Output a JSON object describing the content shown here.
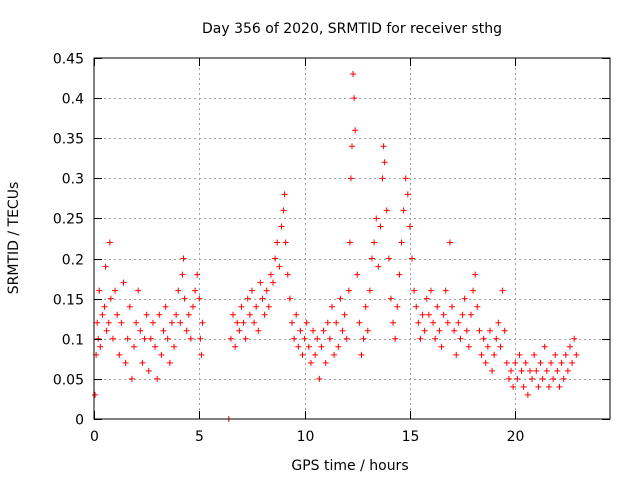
{
  "chart_data": {
    "type": "scatter",
    "title": "Day 356 of 2020, SRMTID for receiver sthg",
    "xlabel": "GPS time / hours",
    "ylabel": "SRMTID / TECUs",
    "xlim": [
      0,
      24.5
    ],
    "ylim": [
      0,
      0.45
    ],
    "xticks": [
      0,
      5,
      10,
      15,
      20
    ],
    "xtick_labels": [
      "0",
      "5",
      "10",
      "15",
      "20"
    ],
    "yticks": [
      0,
      0.05,
      0.1,
      0.15,
      0.2,
      0.25,
      0.3,
      0.35,
      0.4,
      0.45
    ],
    "ytick_labels": [
      "0",
      "0.05",
      "0.1",
      "0.15",
      "0.2",
      "0.25",
      "0.3",
      "0.35",
      "0.4",
      "0.45"
    ],
    "grid": true,
    "marker": "+",
    "color": "#ff0000",
    "series": [
      {
        "name": "SRMTID",
        "points": [
          [
            0.05,
            0.03
          ],
          [
            0.1,
            0.08
          ],
          [
            0.15,
            0.12
          ],
          [
            0.2,
            0.1
          ],
          [
            0.25,
            0.16
          ],
          [
            0.3,
            0.09
          ],
          [
            0.4,
            0.13
          ],
          [
            0.5,
            0.14
          ],
          [
            0.55,
            0.19
          ],
          [
            0.6,
            0.11
          ],
          [
            0.7,
            0.12
          ],
          [
            0.75,
            0.22
          ],
          [
            0.8,
            0.15
          ],
          [
            0.9,
            0.1
          ],
          [
            1.0,
            0.16
          ],
          [
            1.1,
            0.13
          ],
          [
            1.2,
            0.08
          ],
          [
            1.3,
            0.12
          ],
          [
            1.4,
            0.17
          ],
          [
            1.5,
            0.07
          ],
          [
            1.6,
            0.1
          ],
          [
            1.7,
            0.14
          ],
          [
            1.8,
            0.05
          ],
          [
            1.9,
            0.09
          ],
          [
            2.0,
            0.12
          ],
          [
            2.1,
            0.16
          ],
          [
            2.2,
            0.11
          ],
          [
            2.3,
            0.07
          ],
          [
            2.4,
            0.1
          ],
          [
            2.5,
            0.13
          ],
          [
            2.6,
            0.06
          ],
          [
            2.7,
            0.1
          ],
          [
            2.8,
            0.12
          ],
          [
            2.9,
            0.09
          ],
          [
            3.0,
            0.05
          ],
          [
            3.1,
            0.13
          ],
          [
            3.2,
            0.08
          ],
          [
            3.3,
            0.11
          ],
          [
            3.4,
            0.14
          ],
          [
            3.5,
            0.1
          ],
          [
            3.6,
            0.07
          ],
          [
            3.7,
            0.12
          ],
          [
            3.8,
            0.09
          ],
          [
            3.9,
            0.13
          ],
          [
            4.0,
            0.16
          ],
          [
            4.1,
            0.12
          ],
          [
            4.2,
            0.18
          ],
          [
            4.25,
            0.2
          ],
          [
            4.3,
            0.15
          ],
          [
            4.4,
            0.11
          ],
          [
            4.5,
            0.13
          ],
          [
            4.6,
            0.1
          ],
          [
            4.7,
            0.14
          ],
          [
            4.8,
            0.16
          ],
          [
            4.9,
            0.18
          ],
          [
            5.0,
            0.15
          ],
          [
            5.05,
            0.1
          ],
          [
            5.1,
            0.08
          ],
          [
            5.15,
            0.12
          ],
          [
            6.4,
            0.0
          ],
          [
            6.5,
            0.1
          ],
          [
            6.6,
            0.13
          ],
          [
            6.7,
            0.09
          ],
          [
            6.8,
            0.12
          ],
          [
            6.9,
            0.11
          ],
          [
            7.0,
            0.14
          ],
          [
            7.1,
            0.12
          ],
          [
            7.2,
            0.1
          ],
          [
            7.3,
            0.15
          ],
          [
            7.4,
            0.13
          ],
          [
            7.5,
            0.16
          ],
          [
            7.6,
            0.12
          ],
          [
            7.7,
            0.14
          ],
          [
            7.8,
            0.11
          ],
          [
            7.9,
            0.17
          ],
          [
            8.0,
            0.15
          ],
          [
            8.1,
            0.13
          ],
          [
            8.2,
            0.16
          ],
          [
            8.3,
            0.14
          ],
          [
            8.4,
            0.18
          ],
          [
            8.5,
            0.17
          ],
          [
            8.6,
            0.2
          ],
          [
            8.7,
            0.22
          ],
          [
            8.8,
            0.19
          ],
          [
            8.9,
            0.24
          ],
          [
            9.0,
            0.26
          ],
          [
            9.05,
            0.28
          ],
          [
            9.1,
            0.22
          ],
          [
            9.2,
            0.18
          ],
          [
            9.3,
            0.15
          ],
          [
            9.4,
            0.12
          ],
          [
            9.5,
            0.1
          ],
          [
            9.6,
            0.13
          ],
          [
            9.7,
            0.09
          ],
          [
            9.8,
            0.11
          ],
          [
            9.9,
            0.08
          ],
          [
            10.0,
            0.1
          ],
          [
            10.1,
            0.12
          ],
          [
            10.2,
            0.09
          ],
          [
            10.3,
            0.07
          ],
          [
            10.4,
            0.11
          ],
          [
            10.5,
            0.08
          ],
          [
            10.6,
            0.1
          ],
          [
            10.7,
            0.05
          ],
          [
            10.8,
            0.09
          ],
          [
            10.9,
            0.11
          ],
          [
            11.0,
            0.07
          ],
          [
            11.1,
            0.12
          ],
          [
            11.2,
            0.1
          ],
          [
            11.3,
            0.14
          ],
          [
            11.4,
            0.08
          ],
          [
            11.5,
            0.12
          ],
          [
            11.6,
            0.09
          ],
          [
            11.7,
            0.15
          ],
          [
            11.8,
            0.11
          ],
          [
            11.9,
            0.13
          ],
          [
            12.0,
            0.1
          ],
          [
            12.1,
            0.16
          ],
          [
            12.15,
            0.22
          ],
          [
            12.2,
            0.3
          ],
          [
            12.25,
            0.34
          ],
          [
            12.3,
            0.43
          ],
          [
            12.35,
            0.4
          ],
          [
            12.4,
            0.36
          ],
          [
            12.5,
            0.18
          ],
          [
            12.6,
            0.12
          ],
          [
            12.7,
            0.08
          ],
          [
            12.8,
            0.1
          ],
          [
            12.9,
            0.14
          ],
          [
            13.0,
            0.11
          ],
          [
            13.1,
            0.16
          ],
          [
            13.2,
            0.2
          ],
          [
            13.3,
            0.22
          ],
          [
            13.4,
            0.25
          ],
          [
            13.5,
            0.19
          ],
          [
            13.6,
            0.24
          ],
          [
            13.7,
            0.3
          ],
          [
            13.75,
            0.34
          ],
          [
            13.8,
            0.32
          ],
          [
            13.9,
            0.26
          ],
          [
            14.0,
            0.2
          ],
          [
            14.1,
            0.15
          ],
          [
            14.2,
            0.12
          ],
          [
            14.3,
            0.1
          ],
          [
            14.4,
            0.14
          ],
          [
            14.5,
            0.18
          ],
          [
            14.6,
            0.22
          ],
          [
            14.7,
            0.26
          ],
          [
            14.8,
            0.3
          ],
          [
            14.9,
            0.28
          ],
          [
            15.0,
            0.24
          ],
          [
            15.1,
            0.2
          ],
          [
            15.2,
            0.16
          ],
          [
            15.3,
            0.14
          ],
          [
            15.4,
            0.12
          ],
          [
            15.5,
            0.1
          ],
          [
            15.6,
            0.13
          ],
          [
            15.7,
            0.11
          ],
          [
            15.8,
            0.15
          ],
          [
            15.9,
            0.13
          ],
          [
            16.0,
            0.16
          ],
          [
            16.1,
            0.12
          ],
          [
            16.2,
            0.1
          ],
          [
            16.3,
            0.14
          ],
          [
            16.4,
            0.11
          ],
          [
            16.5,
            0.09
          ],
          [
            16.6,
            0.13
          ],
          [
            16.7,
            0.16
          ],
          [
            16.8,
            0.12
          ],
          [
            16.9,
            0.22
          ],
          [
            17.0,
            0.14
          ],
          [
            17.1,
            0.11
          ],
          [
            17.2,
            0.08
          ],
          [
            17.3,
            0.12
          ],
          [
            17.4,
            0.1
          ],
          [
            17.5,
            0.13
          ],
          [
            17.6,
            0.15
          ],
          [
            17.7,
            0.11
          ],
          [
            17.8,
            0.09
          ],
          [
            17.9,
            0.13
          ],
          [
            18.0,
            0.16
          ],
          [
            18.1,
            0.18
          ],
          [
            18.2,
            0.14
          ],
          [
            18.3,
            0.11
          ],
          [
            18.4,
            0.08
          ],
          [
            18.5,
            0.1
          ],
          [
            18.6,
            0.07
          ],
          [
            18.7,
            0.09
          ],
          [
            18.8,
            0.11
          ],
          [
            18.9,
            0.06
          ],
          [
            19.0,
            0.08
          ],
          [
            19.1,
            0.1
          ],
          [
            19.2,
            0.12
          ],
          [
            19.3,
            0.09
          ],
          [
            19.4,
            0.16
          ],
          [
            19.5,
            0.11
          ],
          [
            19.6,
            0.07
          ],
          [
            19.7,
            0.05
          ],
          [
            19.8,
            0.06
          ],
          [
            19.9,
            0.04
          ],
          [
            20.0,
            0.07
          ],
          [
            20.1,
            0.05
          ],
          [
            20.2,
            0.08
          ],
          [
            20.3,
            0.06
          ],
          [
            20.4,
            0.04
          ],
          [
            20.5,
            0.07
          ],
          [
            20.6,
            0.03
          ],
          [
            20.7,
            0.06
          ],
          [
            20.8,
            0.05
          ],
          [
            20.9,
            0.08
          ],
          [
            21.0,
            0.06
          ],
          [
            21.1,
            0.04
          ],
          [
            21.2,
            0.07
          ],
          [
            21.3,
            0.05
          ],
          [
            21.4,
            0.09
          ],
          [
            21.5,
            0.06
          ],
          [
            21.6,
            0.04
          ],
          [
            21.7,
            0.07
          ],
          [
            21.8,
            0.05
          ],
          [
            21.9,
            0.08
          ],
          [
            22.0,
            0.06
          ],
          [
            22.1,
            0.04
          ],
          [
            22.2,
            0.07
          ],
          [
            22.3,
            0.05
          ],
          [
            22.4,
            0.08
          ],
          [
            22.5,
            0.06
          ],
          [
            22.6,
            0.09
          ],
          [
            22.7,
            0.07
          ],
          [
            22.8,
            0.1
          ],
          [
            22.9,
            0.08
          ]
        ]
      }
    ]
  }
}
